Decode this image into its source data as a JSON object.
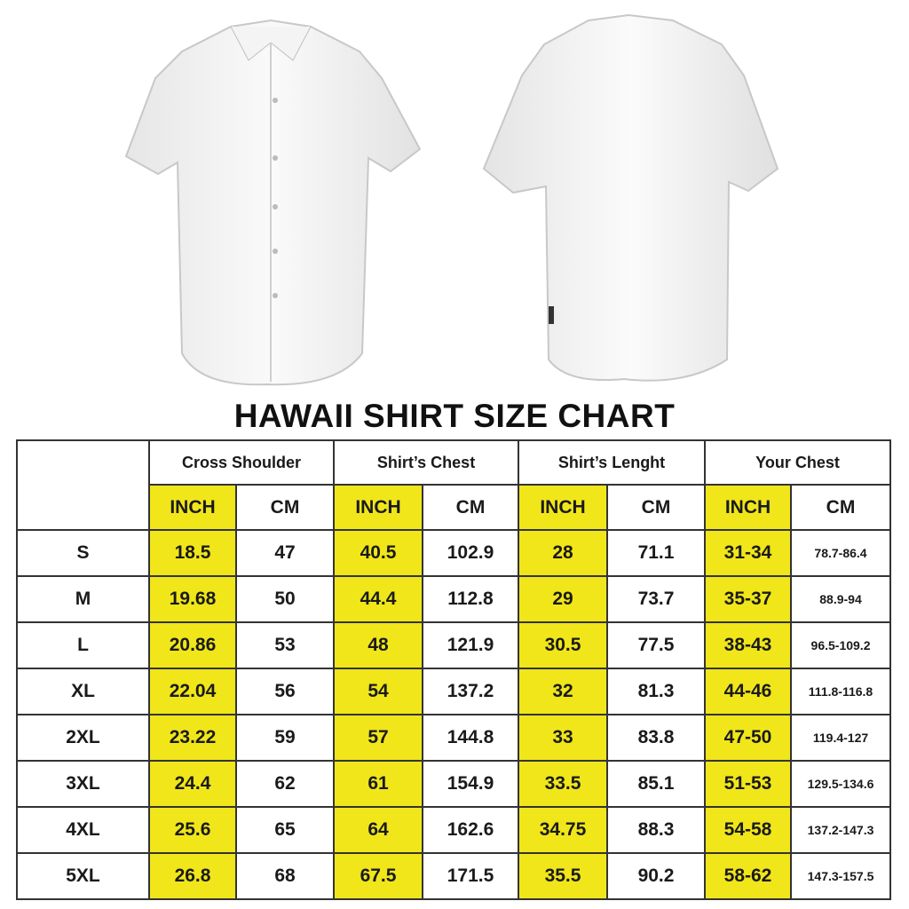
{
  "title": "HAWAII SHIRT SIZE CHART",
  "colors": {
    "inch_highlight": "#f0e61a",
    "border": "#333333",
    "text": "#1a1a1a"
  },
  "images": {
    "front": "white short-sleeve button-up shirt front view",
    "back": "white short-sleeve shirt back view"
  },
  "groups": [
    "Cross Shoulder",
    "Shirt’s Chest",
    "Shirt’s Lenght",
    "Your Chest"
  ],
  "units": {
    "inch": "INCH",
    "cm": "CM"
  },
  "rows": [
    {
      "size": "S",
      "values": [
        "18.5",
        "47",
        "40.5",
        "102.9",
        "28",
        "71.1",
        "31-34",
        "78.7-86.4"
      ]
    },
    {
      "size": "M",
      "values": [
        "19.68",
        "50",
        "44.4",
        "112.8",
        "29",
        "73.7",
        "35-37",
        "88.9-94"
      ]
    },
    {
      "size": "L",
      "values": [
        "20.86",
        "53",
        "48",
        "121.9",
        "30.5",
        "77.5",
        "38-43",
        "96.5-109.2"
      ]
    },
    {
      "size": "XL",
      "values": [
        "22.04",
        "56",
        "54",
        "137.2",
        "32",
        "81.3",
        "44-46",
        "111.8-116.8"
      ]
    },
    {
      "size": "2XL",
      "values": [
        "23.22",
        "59",
        "57",
        "144.8",
        "33",
        "83.8",
        "47-50",
        "119.4-127"
      ]
    },
    {
      "size": "3XL",
      "values": [
        "24.4",
        "62",
        "61",
        "154.9",
        "33.5",
        "85.1",
        "51-53",
        "129.5-134.6"
      ]
    },
    {
      "size": "4XL",
      "values": [
        "25.6",
        "65",
        "64",
        "162.6",
        "34.75",
        "88.3",
        "54-58",
        "137.2-147.3"
      ]
    },
    {
      "size": "5XL",
      "values": [
        "26.8",
        "68",
        "67.5",
        "171.5",
        "35.5",
        "90.2",
        "58-62",
        "147.3-157.5"
      ]
    }
  ]
}
